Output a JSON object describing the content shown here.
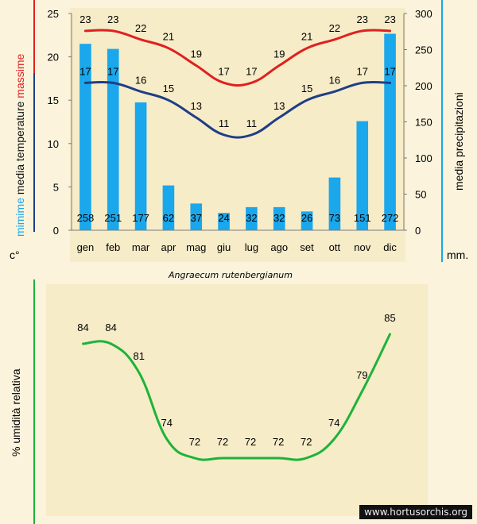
{
  "caption": "Angraecum rutenbergianum",
  "watermark": "www.hortusorchis.org",
  "colors": {
    "background": "#fbf3dc",
    "plot_background": "#f6ecc8",
    "max_temp": "#e02020",
    "min_temp": "#1f3e86",
    "precip": "#1aa7ec",
    "humidity": "#1db33a",
    "axis_left_blue": "#1f3e86",
    "axis_left_red": "#e02020",
    "axis_right": "#1aa7ec",
    "axis_humidity": "#1db33a"
  },
  "chart_data": [
    {
      "type": "bar-line-combo",
      "title": "",
      "categories": [
        "gen",
        "feb",
        "mar",
        "apr",
        "mag",
        "giu",
        "lug",
        "ago",
        "set",
        "ott",
        "nov",
        "dic"
      ],
      "series": [
        {
          "name": "massime",
          "kind": "line",
          "axis": "left",
          "values": [
            23,
            23,
            22,
            21,
            19,
            17,
            17,
            19,
            21,
            22,
            23,
            23
          ]
        },
        {
          "name": "mimime",
          "kind": "line",
          "axis": "left",
          "values": [
            17,
            17,
            16,
            15,
            13,
            11,
            11,
            13,
            15,
            16,
            17,
            17
          ]
        },
        {
          "name": "media precipitazioni",
          "kind": "bar",
          "axis": "right",
          "values": [
            258,
            251,
            177,
            62,
            37,
            24,
            32,
            32,
            26,
            73,
            151,
            272
          ]
        }
      ],
      "left_axis": {
        "ylim": [
          0,
          25
        ],
        "ticks": [
          0,
          5,
          10,
          15,
          20,
          25
        ],
        "unit": "c°",
        "label_words": [
          "mimime",
          "media",
          "temperature",
          "massime"
        ]
      },
      "right_axis": {
        "ylim": [
          0,
          300
        ],
        "ticks": [
          0,
          50,
          100,
          150,
          200,
          250,
          300
        ],
        "unit": "mm.",
        "label": "media  precipitazioni"
      },
      "grid": false
    },
    {
      "type": "line",
      "title": "",
      "categories": [
        "gen",
        "feb",
        "mar",
        "apr",
        "mag",
        "giu",
        "lug",
        "ago",
        "set",
        "ott",
        "nov",
        "dic"
      ],
      "series": [
        {
          "name": "% umidità relativa",
          "values": [
            84,
            84,
            81,
            74,
            72,
            72,
            72,
            72,
            72,
            74,
            79,
            85
          ]
        }
      ],
      "ylabel": "% umidità relativa",
      "ylim": [
        68,
        88
      ],
      "grid": false
    }
  ]
}
